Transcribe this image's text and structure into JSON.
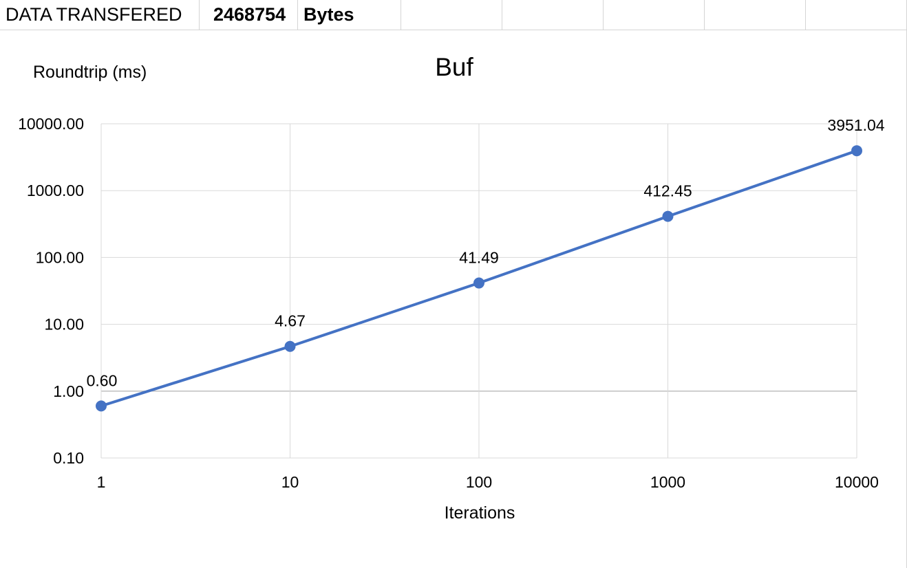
{
  "sheet": {
    "row_cells": [
      "DATA TRANSFERED",
      "2468754",
      "Bytes"
    ]
  },
  "chart_data": {
    "type": "line",
    "title": "Buf",
    "xlabel": "Iterations",
    "ylabel": "Roundtrip (ms)",
    "x_scale": "log",
    "y_scale": "log",
    "x": [
      1,
      10,
      100,
      1000,
      10000
    ],
    "x_tick_labels": [
      "1",
      "10",
      "100",
      "1000",
      "10000"
    ],
    "y_ticks": [
      0.1,
      1,
      10,
      100,
      1000,
      10000
    ],
    "y_tick_labels": [
      "0.10",
      "1.00",
      "10.00",
      "100.00",
      "1000.00",
      "10000.00"
    ],
    "ylim": [
      0.1,
      10000
    ],
    "xlim": [
      1,
      10000
    ],
    "grid": true,
    "series": [
      {
        "values": [
          0.6,
          4.67,
          41.49,
          412.45,
          3951.04
        ],
        "data_labels": [
          "0.60",
          "4.67",
          "41.49",
          "412.45",
          "3951.04"
        ],
        "color": "#4472C4"
      }
    ]
  }
}
